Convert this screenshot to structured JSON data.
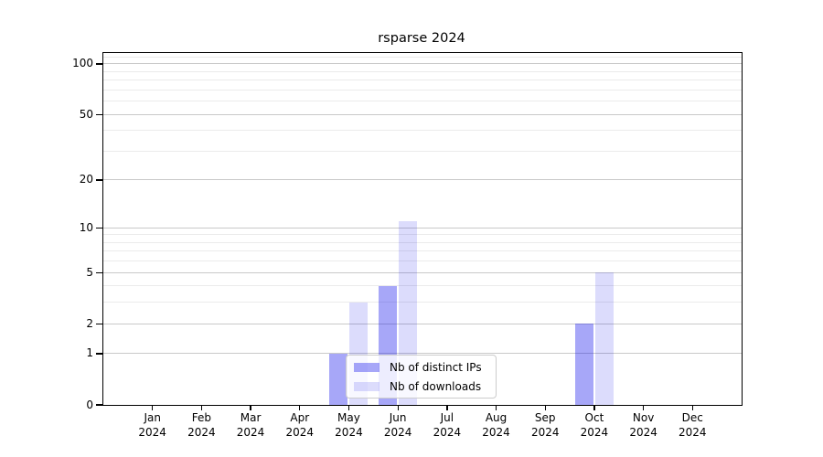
{
  "title": "rsparse 2024",
  "chart_data": {
    "type": "bar",
    "title": "rsparse 2024",
    "categories": [
      "Jan",
      "Feb",
      "Mar",
      "Apr",
      "May",
      "Jun",
      "Jul",
      "Aug",
      "Sep",
      "Oct",
      "Nov",
      "Dec"
    ],
    "category_year": "2024",
    "series": [
      {
        "name": "Nb of distinct IPs",
        "color": "rgba(10,10,235,0.36)",
        "values": [
          0,
          0,
          0,
          0,
          1,
          4,
          0,
          0,
          0,
          2,
          0,
          0
        ]
      },
      {
        "name": "Nb of downloads",
        "color": "rgba(10,10,235,0.14)",
        "values": [
          0,
          0,
          0,
          0,
          3,
          11,
          0,
          0,
          0,
          5,
          0,
          0
        ]
      }
    ],
    "xlabel": "",
    "ylabel": "",
    "yscale": "log1p",
    "ylim": [
      0,
      116
    ],
    "y_ticks": [
      0,
      1,
      2,
      5,
      10,
      20,
      50,
      100
    ],
    "grid_major": [
      1,
      2,
      5,
      10,
      20,
      50,
      100
    ],
    "grid_minor": [
      3,
      4,
      6,
      7,
      8,
      9,
      30,
      40,
      60,
      70,
      80,
      90,
      110
    ],
    "grid": "both",
    "legend_position": "lower-center"
  },
  "colors": {
    "ips_bar_solid": "#a9a9f5",
    "downloads_bar_solid": "#dcdcf8",
    "grid_major": "#c9c9c9",
    "grid_minor": "#ebebeb",
    "spine": "#000000",
    "legend_border": "#cccccc"
  }
}
